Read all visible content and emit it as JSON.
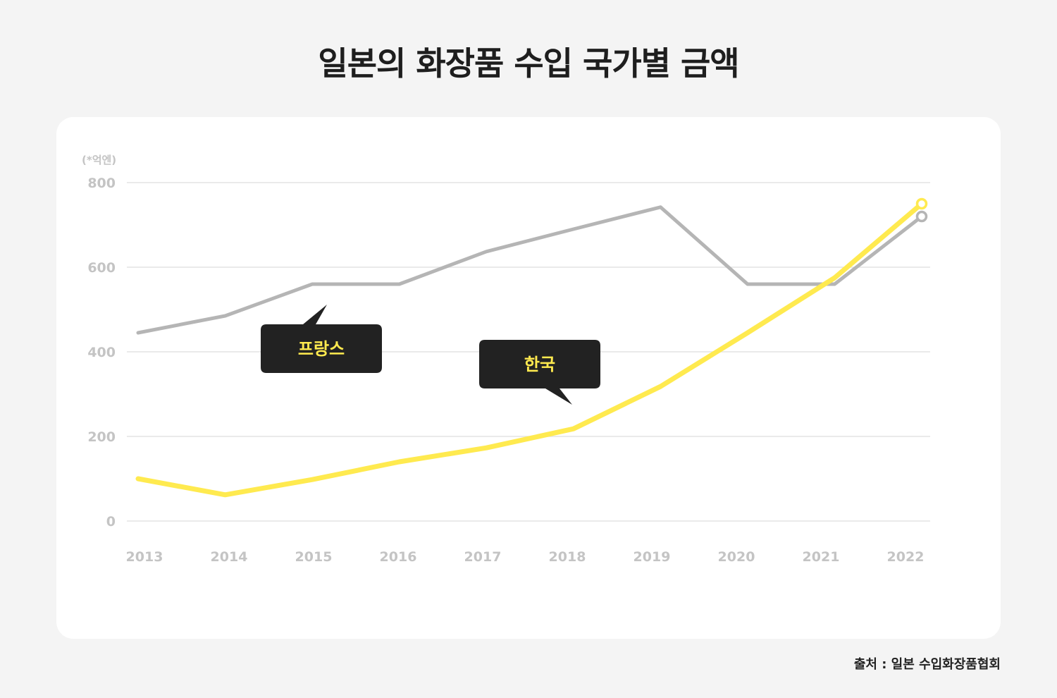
{
  "title": "일본의 화장품 수입 국가별 금액",
  "source": "출처 : 일본 수입화장품협회",
  "colors": {
    "background": "#f4f4f4",
    "card": "#ffffff",
    "france": "#b5b5b5",
    "korea": "#ffea4f",
    "callout_bg": "#222222",
    "callout_text": "#ffea4f",
    "axis_text": "#c4c4c4",
    "grid": "#e4e4e4"
  },
  "chart_data": {
    "type": "line",
    "unit_label": "(*억엔)",
    "x": [
      "2013",
      "2014",
      "2015",
      "2016",
      "2017",
      "2018",
      "2019",
      "2020",
      "2021",
      "2022"
    ],
    "yticks": [
      0,
      200,
      400,
      600,
      800
    ],
    "ylim": [
      0,
      800
    ],
    "grid": true,
    "series": [
      {
        "name": "프랑스",
        "color": "#b5b5b5",
        "values": [
          445,
          485,
          560,
          560,
          637,
          690,
          742,
          560,
          560,
          720
        ]
      },
      {
        "name": "한국",
        "color": "#ffea4f",
        "values": [
          100,
          62,
          98,
          140,
          173,
          218,
          318,
          445,
          575,
          750
        ]
      }
    ]
  }
}
